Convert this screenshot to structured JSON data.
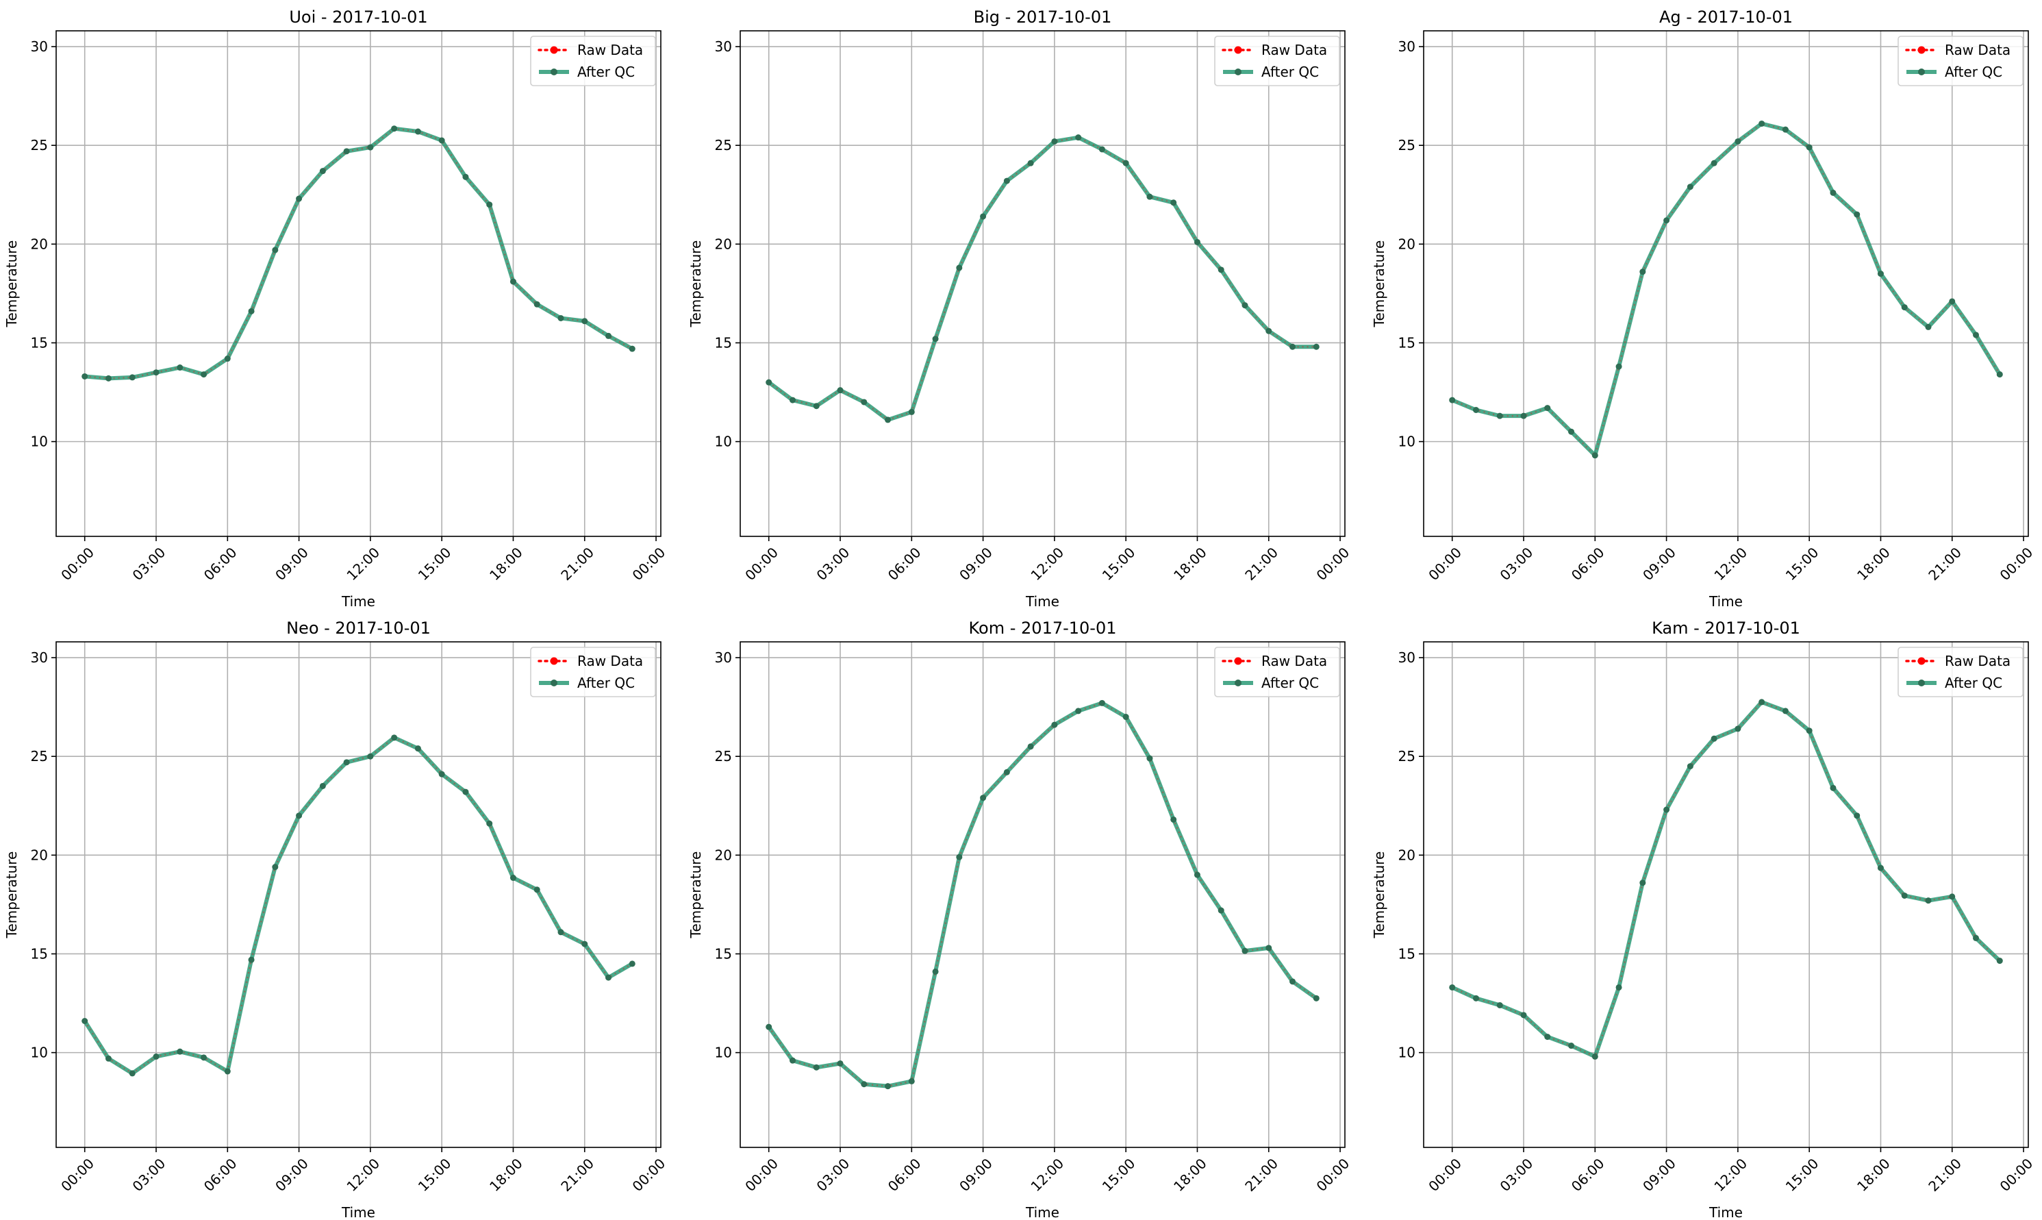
{
  "colors": {
    "raw": "#ff0000",
    "qc": "#2a9a75",
    "grid": "#b0b0b0",
    "axis": "#000000",
    "legend_frame": "#d0d0d0"
  },
  "legend": {
    "raw_label": "Raw Data",
    "qc_label": "After QC",
    "placement": "upper right"
  },
  "chart_data": [
    {
      "type": "line",
      "title": "Uoi - 2017-10-01",
      "xlabel": "Time",
      "ylabel": "Temperature",
      "x_ticks": [
        "00:00",
        "03:00",
        "06:00",
        "09:00",
        "12:00",
        "15:00",
        "18:00",
        "21:00",
        "00:00"
      ],
      "y_ticks": [
        10,
        15,
        20,
        25,
        30
      ],
      "xlim": [
        -1.2,
        24.2
      ],
      "ylim": [
        5.2,
        30.8
      ],
      "grid": true,
      "x_hours": [
        0,
        1,
        2,
        3,
        4,
        5,
        6,
        7,
        8,
        9,
        10,
        11,
        12,
        13,
        14,
        15,
        16,
        17,
        18,
        19,
        20,
        21,
        22,
        23
      ],
      "series": [
        {
          "name": "Raw Data",
          "values": [
            13.3,
            13.2,
            13.25,
            13.5,
            13.75,
            13.4,
            14.2,
            16.6,
            19.7,
            22.3,
            23.7,
            24.7,
            24.9,
            25.85,
            25.7,
            25.25,
            23.4,
            22.0,
            18.1,
            16.95,
            16.25,
            16.1,
            15.35,
            14.7
          ]
        },
        {
          "name": "After QC",
          "values": [
            13.3,
            13.2,
            13.25,
            13.5,
            13.75,
            13.4,
            14.2,
            16.6,
            19.7,
            22.3,
            23.7,
            24.7,
            24.9,
            25.85,
            25.7,
            25.25,
            23.4,
            22.0,
            18.1,
            16.95,
            16.25,
            16.1,
            15.35,
            14.7
          ]
        }
      ]
    },
    {
      "type": "line",
      "title": "Big - 2017-10-01",
      "xlabel": "Time",
      "ylabel": "Temperature",
      "x_ticks": [
        "00:00",
        "03:00",
        "06:00",
        "09:00",
        "12:00",
        "15:00",
        "18:00",
        "21:00",
        "00:00"
      ],
      "y_ticks": [
        10,
        15,
        20,
        25,
        30
      ],
      "xlim": [
        -1.2,
        24.2
      ],
      "ylim": [
        5.2,
        30.8
      ],
      "grid": true,
      "x_hours": [
        0,
        1,
        2,
        3,
        4,
        5,
        6,
        7,
        8,
        9,
        10,
        11,
        12,
        13,
        14,
        15,
        16,
        17,
        18,
        19,
        20,
        21,
        22,
        23
      ],
      "series": [
        {
          "name": "Raw Data",
          "values": [
            13.0,
            12.1,
            11.8,
            12.6,
            12.0,
            11.1,
            11.5,
            15.2,
            18.8,
            21.4,
            23.2,
            24.1,
            25.2,
            25.4,
            24.8,
            24.1,
            22.4,
            22.1,
            20.1,
            18.7,
            16.9,
            15.6,
            14.8,
            14.8
          ]
        },
        {
          "name": "After QC",
          "values": [
            13.0,
            12.1,
            11.8,
            12.6,
            12.0,
            11.1,
            11.5,
            15.2,
            18.8,
            21.4,
            23.2,
            24.1,
            25.2,
            25.4,
            24.8,
            24.1,
            22.4,
            22.1,
            20.1,
            18.7,
            16.9,
            15.6,
            14.8,
            14.8
          ]
        }
      ]
    },
    {
      "type": "line",
      "title": "Ag - 2017-10-01",
      "xlabel": "Time",
      "ylabel": "Temperature",
      "x_ticks": [
        "00:00",
        "03:00",
        "06:00",
        "09:00",
        "12:00",
        "15:00",
        "18:00",
        "21:00",
        "00:00"
      ],
      "y_ticks": [
        10,
        15,
        20,
        25,
        30
      ],
      "xlim": [
        -1.2,
        24.2
      ],
      "ylim": [
        5.2,
        30.8
      ],
      "grid": true,
      "x_hours": [
        0,
        1,
        2,
        3,
        4,
        5,
        6,
        7,
        8,
        9,
        10,
        11,
        12,
        13,
        14,
        15,
        16,
        17,
        18,
        19,
        20,
        21,
        22,
        23
      ],
      "series": [
        {
          "name": "Raw Data",
          "values": [
            12.1,
            11.6,
            11.3,
            11.3,
            11.7,
            10.5,
            9.3,
            13.8,
            18.6,
            21.2,
            22.9,
            24.1,
            25.2,
            26.1,
            25.8,
            24.9,
            22.6,
            21.5,
            18.5,
            16.8,
            15.8,
            17.1,
            15.4,
            13.4
          ]
        },
        {
          "name": "After QC",
          "values": [
            12.1,
            11.6,
            11.3,
            11.3,
            11.7,
            10.5,
            9.3,
            13.8,
            18.6,
            21.2,
            22.9,
            24.1,
            25.2,
            26.1,
            25.8,
            24.9,
            22.6,
            21.5,
            18.5,
            16.8,
            15.8,
            17.1,
            15.4,
            13.4
          ]
        }
      ]
    },
    {
      "type": "line",
      "title": "Neo - 2017-10-01",
      "xlabel": "Time",
      "ylabel": "Temperature",
      "x_ticks": [
        "00:00",
        "03:00",
        "06:00",
        "09:00",
        "12:00",
        "15:00",
        "18:00",
        "21:00",
        "00:00"
      ],
      "y_ticks": [
        10,
        15,
        20,
        25,
        30
      ],
      "xlim": [
        -1.2,
        24.2
      ],
      "ylim": [
        5.2,
        30.8
      ],
      "grid": true,
      "x_hours": [
        0,
        1,
        2,
        3,
        4,
        5,
        6,
        7,
        8,
        9,
        10,
        11,
        12,
        13,
        14,
        15,
        16,
        17,
        18,
        19,
        20,
        21,
        22,
        23
      ],
      "series": [
        {
          "name": "Raw Data",
          "values": [
            11.6,
            9.7,
            8.95,
            9.8,
            10.05,
            9.75,
            9.05,
            14.7,
            19.4,
            22.0,
            23.5,
            24.7,
            25.0,
            25.95,
            25.4,
            24.1,
            23.2,
            21.6,
            18.85,
            18.25,
            16.1,
            15.5,
            13.8,
            14.5
          ]
        },
        {
          "name": "After QC",
          "values": [
            11.6,
            9.7,
            8.95,
            9.8,
            10.05,
            9.75,
            9.05,
            14.7,
            19.4,
            22.0,
            23.5,
            24.7,
            25.0,
            25.95,
            25.4,
            24.1,
            23.2,
            21.6,
            18.85,
            18.25,
            16.1,
            15.5,
            13.8,
            14.5
          ]
        }
      ]
    },
    {
      "type": "line",
      "title": "Kom - 2017-10-01",
      "xlabel": "Time",
      "ylabel": "Temperature",
      "x_ticks": [
        "00:00",
        "03:00",
        "06:00",
        "09:00",
        "12:00",
        "15:00",
        "18:00",
        "21:00",
        "00:00"
      ],
      "y_ticks": [
        10,
        15,
        20,
        25,
        30
      ],
      "xlim": [
        -1.2,
        24.2
      ],
      "ylim": [
        5.2,
        30.8
      ],
      "grid": true,
      "x_hours": [
        0,
        1,
        2,
        3,
        4,
        5,
        6,
        7,
        8,
        9,
        10,
        11,
        12,
        13,
        14,
        15,
        16,
        17,
        18,
        19,
        20,
        21,
        22,
        23
      ],
      "series": [
        {
          "name": "Raw Data",
          "values": [
            11.3,
            9.6,
            9.25,
            9.45,
            8.4,
            8.3,
            8.55,
            14.1,
            19.9,
            22.9,
            24.2,
            25.5,
            26.6,
            27.3,
            27.7,
            27.0,
            24.9,
            21.8,
            19.0,
            17.2,
            15.15,
            15.3,
            13.6,
            12.75
          ]
        },
        {
          "name": "After QC",
          "values": [
            11.3,
            9.6,
            9.25,
            9.45,
            8.4,
            8.3,
            8.55,
            14.1,
            19.9,
            22.9,
            24.2,
            25.5,
            26.6,
            27.3,
            27.7,
            27.0,
            24.9,
            21.8,
            19.0,
            17.2,
            15.15,
            15.3,
            13.6,
            12.75
          ]
        }
      ]
    },
    {
      "type": "line",
      "title": "Kam - 2017-10-01",
      "xlabel": "Time",
      "ylabel": "Temperature",
      "x_ticks": [
        "00:00",
        "03:00",
        "06:00",
        "09:00",
        "12:00",
        "15:00",
        "18:00",
        "21:00",
        "00:00"
      ],
      "y_ticks": [
        10,
        15,
        20,
        25,
        30
      ],
      "xlim": [
        -1.2,
        24.2
      ],
      "ylim": [
        5.2,
        30.8
      ],
      "grid": true,
      "x_hours": [
        0,
        1,
        2,
        3,
        4,
        5,
        6,
        7,
        8,
        9,
        10,
        11,
        12,
        13,
        14,
        15,
        16,
        17,
        18,
        19,
        20,
        21,
        22,
        23
      ],
      "series": [
        {
          "name": "Raw Data",
          "values": [
            13.3,
            12.75,
            12.4,
            11.9,
            10.8,
            10.35,
            9.8,
            13.3,
            18.6,
            22.3,
            24.5,
            25.9,
            26.4,
            27.75,
            27.3,
            26.3,
            23.4,
            22.0,
            19.35,
            17.95,
            17.7,
            17.9,
            15.8,
            14.65
          ]
        },
        {
          "name": "After QC",
          "values": [
            13.3,
            12.75,
            12.4,
            11.9,
            10.8,
            10.35,
            9.8,
            13.3,
            18.6,
            22.3,
            24.5,
            25.9,
            26.4,
            27.75,
            27.3,
            26.3,
            23.4,
            22.0,
            19.35,
            17.95,
            17.7,
            17.9,
            15.8,
            14.65
          ]
        }
      ]
    }
  ]
}
